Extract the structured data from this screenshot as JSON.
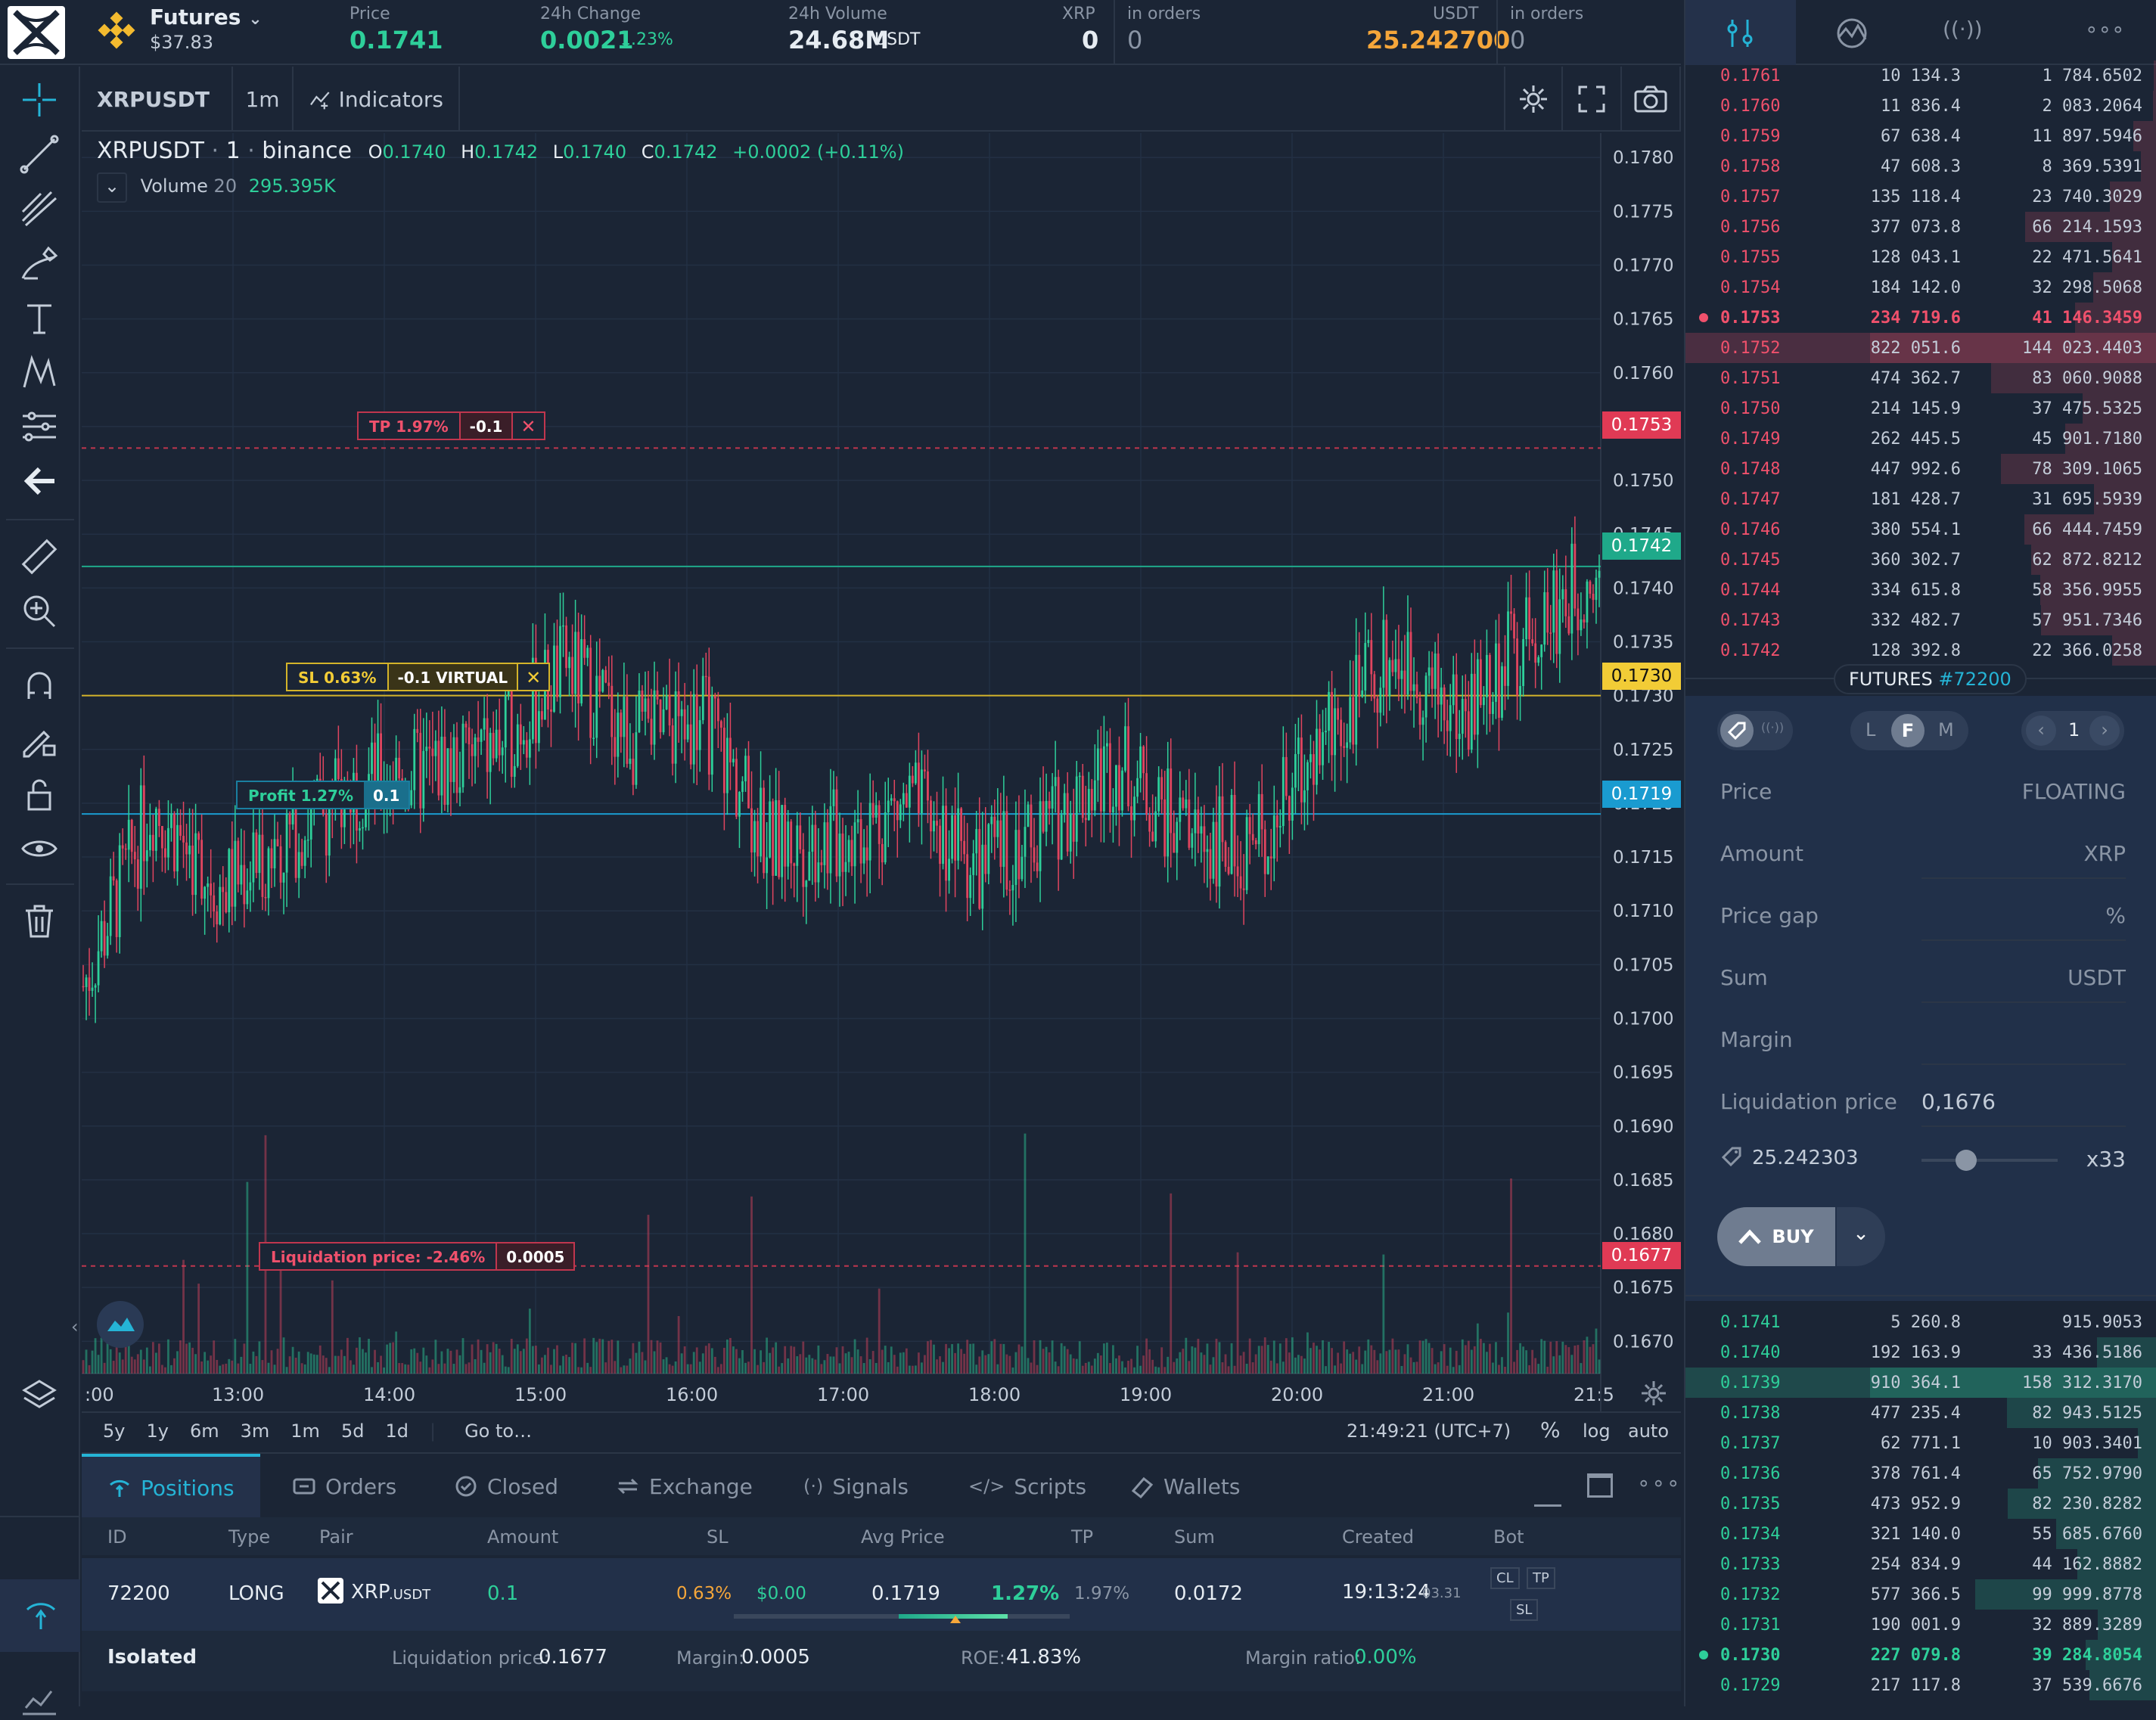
{
  "header": {
    "market": "Futures",
    "balance": "$37.83",
    "price_label": "Price",
    "price": "0.1741",
    "change_label": "24h Change",
    "change": "0.0021",
    "change_pct": "1.23%",
    "volume_label": "24h Volume",
    "volume": "24.68M",
    "volume_unit": "USDT",
    "xrp_label": "XRP",
    "xrp_value": "0",
    "xrp_orders_label": "in orders",
    "xrp_orders": "0",
    "usdt_label": "USDT",
    "usdt_value": "25.242700",
    "usdt_orders_label": "in orders",
    "usdt_orders": "0"
  },
  "right_tabs": [
    "orderbook-icon",
    "chart-icon",
    "signal-icon",
    "more-icon"
  ],
  "chart_toolbar": {
    "symbol": "XRPUSDT",
    "interval": "1m",
    "indicators": "Indicators"
  },
  "legend": {
    "symbol": "XRPUSDT",
    "interval": "1",
    "exchange": "binance",
    "o_label": "O",
    "o": "0.1740",
    "h_label": "H",
    "h": "0.1742",
    "l_label": "L",
    "l": "0.1740",
    "c_label": "C",
    "c": "0.1742",
    "chg": "+0.0002 (+0.11%)",
    "volume_label": "Volume",
    "volume_len": "20",
    "volume_value": "295.395K"
  },
  "overlays": {
    "tp_label": "TP 1.97%",
    "tp_qty": "-0.1",
    "sl_label": "SL 0.63%",
    "sl_qty": "-0.1 VIRTUAL",
    "profit_label": "Profit 1.27%",
    "profit_qty": "0.1",
    "liq_label": "Liquidation price: -2.46%",
    "liq_qty": "0.0005"
  },
  "price_tags": {
    "tp": "0.1753",
    "current": "0.1742",
    "sl": "0.1730",
    "entry": "0.1719",
    "liq": "0.1677"
  },
  "chart_data": {
    "type": "candlestick",
    "y_ticks": [
      "0.1780",
      "0.1775",
      "0.1770",
      "0.1765",
      "0.1760",
      "0.1755",
      "0.1750",
      "0.1745",
      "0.1740",
      "0.1735",
      "0.1730",
      "0.1725",
      "0.1720",
      "0.1715",
      "0.1710",
      "0.1705",
      "0.1700",
      "0.1695",
      "0.1690",
      "0.1685",
      "0.1680",
      "0.1675",
      "0.1670"
    ],
    "ylim": [
      0.1667,
      0.1781
    ],
    "x_ticks": [
      ":00",
      "13:00",
      "14:00",
      "15:00",
      "16:00",
      "17:00",
      "18:00",
      "19:00",
      "20:00",
      "21:00",
      "21:5"
    ],
    "series": [
      {
        "x": "12:00",
        "y": 0.1703
      },
      {
        "x": "12:30",
        "y": 0.172
      },
      {
        "x": "13:00",
        "y": 0.1712
      },
      {
        "x": "13:30",
        "y": 0.1717
      },
      {
        "x": "14:00",
        "y": 0.1722
      },
      {
        "x": "14:30",
        "y": 0.1723
      },
      {
        "x": "15:00",
        "y": 0.1725
      },
      {
        "x": "15:30",
        "y": 0.1733
      },
      {
        "x": "16:00",
        "y": 0.1726
      },
      {
        "x": "16:30",
        "y": 0.1728
      },
      {
        "x": "17:00",
        "y": 0.1716
      },
      {
        "x": "17:30",
        "y": 0.1717
      },
      {
        "x": "18:00",
        "y": 0.172
      },
      {
        "x": "18:20",
        "y": 0.1714
      },
      {
        "x": "18:40",
        "y": 0.1718
      },
      {
        "x": "19:00",
        "y": 0.1724
      },
      {
        "x": "19:10",
        "y": 0.1717
      },
      {
        "x": "19:30",
        "y": 0.1716
      },
      {
        "x": "20:00",
        "y": 0.1726
      },
      {
        "x": "20:30",
        "y": 0.1734
      },
      {
        "x": "21:00",
        "y": 0.1728
      },
      {
        "x": "21:30",
        "y": 0.1736
      },
      {
        "x": "21:49",
        "y": 0.1742
      }
    ]
  },
  "range_buttons": [
    "5y",
    "1y",
    "6m",
    "3m",
    "1m",
    "5d",
    "1d"
  ],
  "goto": "Go to…",
  "clock": "21:49:21 (UTC+7)",
  "pct": "%",
  "log": "log",
  "auto": "auto",
  "bottom_tabs": [
    "Positions",
    "Orders",
    "Closed",
    "Exchange",
    "Signals",
    "Scripts",
    "Wallets"
  ],
  "positions": {
    "headers": [
      "ID",
      "Type",
      "Pair",
      "Amount",
      "SL",
      "Avg Price",
      "TP",
      "Sum",
      "Created",
      "Bot"
    ],
    "row": {
      "id": "72200",
      "type": "LONG",
      "pair": "XRP",
      "pair_sub": ".USDT",
      "amount": "0.1",
      "sl": "0.63%",
      "pnl": "$0.00",
      "avg": "0.1719",
      "roe": "1.27%",
      "tp": "1.97%",
      "sum": "0.0172",
      "created": "19:13:24",
      "created_date": "03.31",
      "cl": "CL",
      "tpb": "TP",
      "slb": "SL"
    },
    "footer": {
      "mode": "Isolated",
      "liq_label": "Liquidation price:",
      "liq": "0.1677",
      "margin_label": "Margin:",
      "margin": "0.0005",
      "roe_label": "ROE:",
      "roe": "41.83%",
      "ratio_label": "Margin ratio:",
      "ratio": "0.00%"
    }
  },
  "orderbook": {
    "asks": [
      [
        "0.1761",
        "10 134.3",
        "1 784.6502"
      ],
      [
        "0.1760",
        "11 836.4",
        "2 083.2064"
      ],
      [
        "0.1759",
        "67 638.4",
        "11 897.5946"
      ],
      [
        "0.1758",
        "47 608.3",
        "8 369.5391"
      ],
      [
        "0.1757",
        "135 118.4",
        "23 740.3029"
      ],
      [
        "0.1756",
        "377 073.8",
        "66 214.1593"
      ],
      [
        "0.1755",
        "128 043.1",
        "22 471.5641"
      ],
      [
        "0.1754",
        "184 142.0",
        "32 298.5068"
      ],
      [
        "0.1753",
        "234 719.6",
        "41 146.3459"
      ],
      [
        "0.1752",
        "822 051.6",
        "144 023.4403"
      ],
      [
        "0.1751",
        "474 362.7",
        "83 060.9088"
      ],
      [
        "0.1750",
        "214 145.9",
        "37 475.5325"
      ],
      [
        "0.1749",
        "262 445.5",
        "45 901.7180"
      ],
      [
        "0.1748",
        "447 992.6",
        "78 309.1065"
      ],
      [
        "0.1747",
        "181 428.7",
        "31 695.5939"
      ],
      [
        "0.1746",
        "380 554.1",
        "66 444.7459"
      ],
      [
        "0.1745",
        "360 302.7",
        "62 872.8212"
      ],
      [
        "0.1744",
        "334 615.8",
        "58 356.9955"
      ],
      [
        "0.1743",
        "332 482.7",
        "57 951.7346"
      ],
      [
        "0.1742",
        "128 392.8",
        "22 366.0258"
      ]
    ],
    "ask_depth": [
      0.013,
      0.015,
      0.083,
      0.058,
      0.165,
      0.46,
      0.157,
      0.225,
      0.287,
      1.0,
      0.578,
      0.261,
      0.32,
      0.545,
      0.221,
      0.464,
      0.439,
      0.408,
      0.405,
      0.157
    ],
    "bids": [
      [
        "0.1741",
        "5 260.8",
        "915.9053"
      ],
      [
        "0.1740",
        "192 163.9",
        "33 436.5186"
      ],
      [
        "0.1739",
        "910 364.1",
        "158 312.3170"
      ],
      [
        "0.1738",
        "477 235.4",
        "82 943.5125"
      ],
      [
        "0.1737",
        "62 771.1",
        "10 903.3401"
      ],
      [
        "0.1736",
        "378 761.4",
        "65 752.9790"
      ],
      [
        "0.1735",
        "473 952.9",
        "82 230.8282"
      ],
      [
        "0.1734",
        "321 140.0",
        "55 685.6760"
      ],
      [
        "0.1733",
        "254 834.9",
        "44 162.8882"
      ],
      [
        "0.1732",
        "577 366.5",
        "99 999.8778"
      ],
      [
        "0.1731",
        "190 001.9",
        "32 889.3289"
      ],
      [
        "0.1730",
        "227 079.8",
        "39 284.8054"
      ],
      [
        "0.1729",
        "217 117.8",
        "37 539.6676"
      ]
    ],
    "bid_depth": [
      0.006,
      0.211,
      1.0,
      0.524,
      0.069,
      0.416,
      0.521,
      0.353,
      0.28,
      0.634,
      0.209,
      0.249,
      0.238
    ]
  },
  "form": {
    "badge": "FUTURES",
    "badge_id": "#72200",
    "modes": [
      "L",
      "F",
      "M"
    ],
    "leverage_step": "1",
    "price_label": "Price",
    "price_val": "FLOATING",
    "amount_label": "Amount",
    "amount_unit": "XRP",
    "gap_label": "Price gap",
    "gap_unit": "%",
    "sum_label": "Sum",
    "sum_unit": "USDT",
    "margin_label": "Margin",
    "liq_label": "Liquidation price",
    "liq_val": "0,1676",
    "balance": "25.242303",
    "leverage": "x33",
    "leverage_level": 0.33,
    "buy": "BUY"
  }
}
